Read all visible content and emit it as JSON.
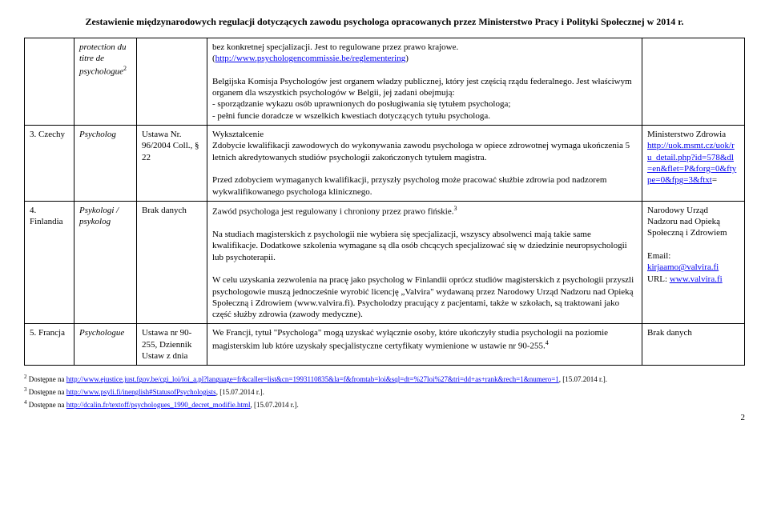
{
  "header": {
    "title": "Zestawienie międzynarodowych regulacji dotyczących zawodu psychologa opracowanych przez Ministerstwo Pracy i Polityki Społecznej w 2014 r."
  },
  "rows": [
    {
      "country": "",
      "profession_html": "<span class='italic'>protection du titre de psychologue</span><sup>2</sup>",
      "law": "",
      "desc_html": "bez konkretnej specjalizacji. Jest to regulowane przez prawo krajowe. (<span class='link'>http://www.psychologencommissie.be/reglementering</span>)<br><br>Belgijska Komisja Psychologów jest organem władzy publicznej, który jest częścią rządu federalnego. Jest właściwym organem dla wszystkich psychologów w Belgii, jej zadani obejmują:<br>- sporządzanie wykazu osób uprawnionych do posługiwania się tytułem psychologa;<br>- pełni funcie doradcze w wszelkich kwestiach dotyczących tytułu psychologa.",
      "contact_html": ""
    },
    {
      "country": "3. Czechy",
      "profession_html": "<span class='italic'>Psycholog</span>",
      "law": "Ustawa Nr. 96/2004 Coll., § 22",
      "desc_html": "Wykształcenie<br>Zdobycie kwalifikacji zawodowych do wykonywania zawodu psychologa w opiece zdrowotnej wymaga ukończenia 5 letnich  akredytowanych studiów psychologii zakończonych tytułem magistra.<br><br>Przed zdobyciem wymaganych kwalifikacji, przyszły psycholog może pracować służbie zdrowia pod nadzorem wykwalifikowanego psychologa klinicznego.",
      "contact_html": "Ministerstwo Zdrowia <span class='link'>http://uok.msmt.cz/uok/r<br>u_detail.php?id=578&amp;dl<br>=en&amp;flet=P&amp;forg=0&amp;fty<br>pe=0&amp;fpg=3&amp;ftxt</span>="
    },
    {
      "country": "4. Finlandia",
      "profession_html": "<span class='italic'>Psykologi / psykolog</span>",
      "law": "Brak danych",
      "desc_html": "Zawód psychologa jest regulowany i chroniony przez prawo fińskie.<sup>3</sup><br><br>Na studiach magisterskich z psychologii nie wybiera się specjalizacji, wszyscy absolwenci mają takie same kwalifikacje.  Dodatkowe szkolenia wymagane są dla osób chcących specjalizować się w dziedzinie neuropsychologii lub psychoterapii.<br><br>W celu uzyskania zezwolenia na pracę jako psycholog w Finlandii oprócz studiów magisterskich z psychologii przyszli psychologowie muszą jednocześnie wyrobić licencję „Valvira\" wydawaną przez Narodowy Urząd Nadzoru nad Opieką Społeczną i Zdrowiem (www.valvira.fi).  Psycholodzy pracujący z pacjentami, także w szkołach, są traktowani jako część służby zdrowia (zawody medyczne).",
      "contact_html": "Narodowy Urząd Nadzoru nad Opieką Społeczną i Zdrowiem<br><br>Email: <span class='link'>kirjaamo@valvira.fi</span><br>URL: <span class='link'>www.valvira.fi</span>"
    },
    {
      "country": "5. Francja",
      "profession_html": "<span class='italic'>Psychologue</span>",
      "law": "Ustawa nr 90-255, Dziennik Ustaw z dnia",
      "desc_html": "We Francji, tytuł \"Psychologa\" mogą uzyskać wyłącznie osoby, które ukończyły studia psychologii na poziomie magisterskim lub które uzyskały specjalistyczne certyfikaty wymienione w ustawie nr 90-255.<sup>4</sup>",
      "contact_html": "Brak danych"
    }
  ],
  "footnotes": [
    {
      "num": "2",
      "html": "Dostępne na <span class='link'>http://www.ejustice.just.fgov.be/cgi_loi/loi_a.pl?language=fr&amp;caller=list&amp;cn=1993110835&amp;la=f&amp;fromtab=loi&amp;sql=dt=%27loi%27&amp;tri=dd+as+rank&amp;rech=1&amp;numero=1</span>, [15.07.2014 r.]."
    },
    {
      "num": "3",
      "html": "Dostępne na <span class='link'>http://www.psyli.fi/inenglish#StatusofPsychologists</span>, [15.07.2014 r.]."
    },
    {
      "num": "4",
      "html": "Dostępne na <span class='link'>http://dcalin.fr/textoff/psychologues_1990_decret_modifie.html</span>, [15.07.2014 r.]."
    }
  ],
  "page_number": "2"
}
